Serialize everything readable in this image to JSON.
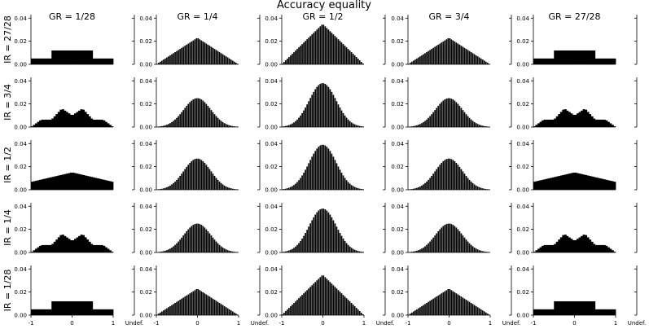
{
  "chart_data": {
    "type": "bar",
    "title": "Accuracy equality",
    "column_labels": [
      "GR = 1/28",
      "GR = 1/4",
      "GR = 1/2",
      "GR = 3/4",
      "GR = 27/28"
    ],
    "row_labels": [
      "IR = 27/28",
      "IR = 3/4",
      "IR = 1/2",
      "IR = 1/4",
      "IR = 1/28"
    ],
    "x_tick_labels": [
      "-1",
      "0",
      "1"
    ],
    "undefined_label": "Undef.",
    "y_tick_labels": [
      "0.00",
      "0.02",
      "0.04"
    ],
    "xlim": [
      -1,
      1
    ],
    "ylim": [
      0,
      0.043
    ],
    "grid": false,
    "shape_key": {
      "IR = 27/28": [
        "plateau",
        "triangle",
        "triangle",
        "triangle",
        "plateau"
      ],
      "IR = 3/4": [
        "bimodal",
        "bell",
        "bell",
        "bell",
        "bimodal"
      ],
      "IR = 1/2": [
        "broad",
        "bell",
        "bell",
        "bell",
        "broad"
      ],
      "IR = 1/4": [
        "bimodal",
        "bell",
        "bell",
        "bell",
        "bimodal"
      ],
      "IR = 1/28": [
        "plateau",
        "triangle",
        "triangle",
        "triangle",
        "plateau"
      ]
    },
    "peak_values": {
      "IR = 27/28": [
        0.012,
        0.023,
        0.035,
        0.023,
        0.012
      ],
      "IR = 3/4": [
        0.016,
        0.025,
        0.038,
        0.025,
        0.016
      ],
      "IR = 1/2": [
        0.015,
        0.027,
        0.039,
        0.027,
        0.015
      ],
      "IR = 1/4": [
        0.016,
        0.025,
        0.038,
        0.025,
        0.016
      ],
      "IR = 1/28": [
        0.012,
        0.023,
        0.035,
        0.023,
        0.012
      ]
    },
    "undefined_values": {
      "IR = 27/28": [
        0,
        0,
        0,
        0,
        0
      ],
      "IR = 3/4": [
        0,
        0,
        0,
        0,
        0
      ],
      "IR = 1/2": [
        0,
        0,
        0,
        0,
        0
      ],
      "IR = 1/4": [
        0,
        0,
        0,
        0,
        0
      ],
      "IR = 1/28": [
        0,
        0,
        0,
        0,
        0
      ]
    }
  }
}
